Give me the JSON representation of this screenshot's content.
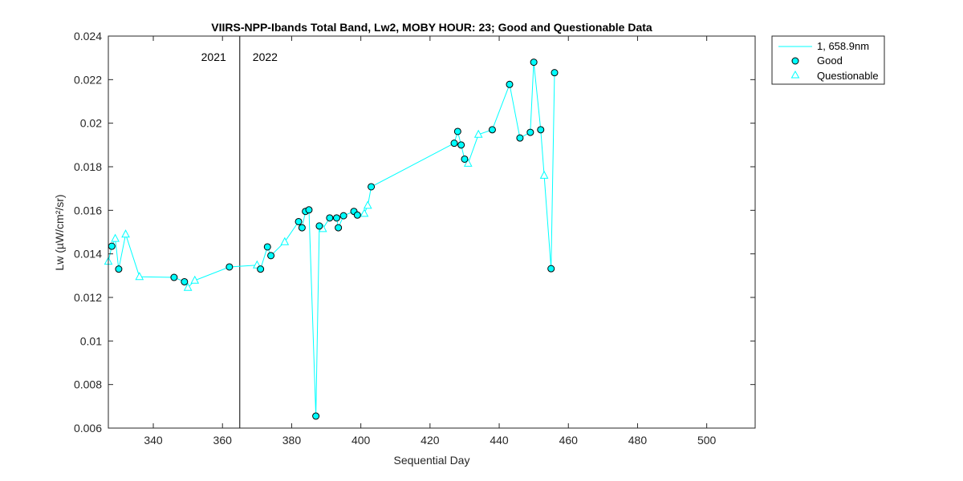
{
  "chart_data": {
    "type": "scatter",
    "title": "VIIRS-NPP-Ibands Total Band,  Lw2, MOBY HOUR: 23;  Good and Questionable Data",
    "xlabel": "Sequential Day",
    "ylabel": "Lw (µW/cm²/sr)",
    "xlim": [
      327,
      514
    ],
    "ylim": [
      0.006,
      0.024
    ],
    "xticks": [
      340,
      360,
      380,
      400,
      420,
      440,
      460,
      480,
      500
    ],
    "yticks": [
      0.006,
      0.008,
      0.01,
      0.012,
      0.014,
      0.016,
      0.018,
      0.02,
      0.022,
      0.024
    ],
    "ytick_labels": [
      "0.006",
      "0.008",
      "0.01",
      "0.012",
      "0.014",
      "0.016",
      "0.018",
      "0.02",
      "0.022",
      "0.024"
    ],
    "year_divider": {
      "x": 365,
      "left_label": "2021",
      "right_label": "2022"
    },
    "line_color": "#00ffff",
    "marker_edge": "#000000",
    "grid": false,
    "legend_position": "outside top-right",
    "legend": {
      "line": "1, 658.9nm",
      "good": "Good",
      "questionable": "Questionable"
    },
    "series": [
      {
        "name": "1, 658.9nm",
        "x": [
          327,
          328,
          329,
          330,
          332,
          336,
          346,
          349,
          350,
          352,
          362,
          370,
          371,
          373,
          374,
          378,
          382,
          383,
          384,
          385,
          387,
          388,
          389,
          391,
          393,
          393.5,
          395,
          398,
          399,
          401,
          402,
          403,
          427,
          428,
          429,
          430,
          431,
          434,
          438,
          443,
          446,
          449,
          450,
          452,
          453,
          455,
          456
        ],
        "y": [
          0.01365,
          0.01435,
          0.0147,
          0.0133,
          0.0149,
          0.01295,
          0.01292,
          0.01272,
          0.01245,
          0.01278,
          0.0134,
          0.01348,
          0.0133,
          0.01432,
          0.01392,
          0.01455,
          0.01548,
          0.0152,
          0.01595,
          0.01602,
          0.00655,
          0.01528,
          0.01515,
          0.01565,
          0.01565,
          0.0152,
          0.01575,
          0.01595,
          0.01578,
          0.01585,
          0.01622,
          0.01708,
          0.01908,
          0.01962,
          0.019,
          0.01835,
          0.01815,
          0.01948,
          0.0197,
          0.02178,
          0.01932,
          0.01958,
          0.0228,
          0.0197,
          0.0176,
          0.01332,
          0.02232
        ]
      }
    ],
    "good": {
      "x": [
        328,
        330,
        346,
        349,
        362,
        371,
        373,
        374,
        382,
        383,
        384,
        385,
        387,
        388,
        391,
        393,
        393.5,
        395,
        398,
        399,
        403,
        427,
        428,
        429,
        430,
        438,
        443,
        446,
        449,
        450,
        452,
        455,
        456
      ],
      "y": [
        0.01435,
        0.0133,
        0.01292,
        0.01272,
        0.0134,
        0.0133,
        0.01432,
        0.01392,
        0.01548,
        0.0152,
        0.01595,
        0.01602,
        0.00655,
        0.01528,
        0.01565,
        0.01565,
        0.0152,
        0.01575,
        0.01595,
        0.01578,
        0.01708,
        0.01908,
        0.01962,
        0.019,
        0.01835,
        0.0197,
        0.02178,
        0.01932,
        0.01958,
        0.0228,
        0.0197,
        0.01332,
        0.02232
      ]
    },
    "questionable": {
      "x": [
        327,
        329,
        332,
        336,
        350,
        352,
        370,
        378,
        389,
        401,
        402,
        431,
        434,
        453
      ],
      "y": [
        0.01365,
        0.0147,
        0.0149,
        0.01295,
        0.01245,
        0.01278,
        0.01348,
        0.01455,
        0.01515,
        0.01585,
        0.01622,
        0.01815,
        0.01948,
        0.0176
      ]
    }
  }
}
